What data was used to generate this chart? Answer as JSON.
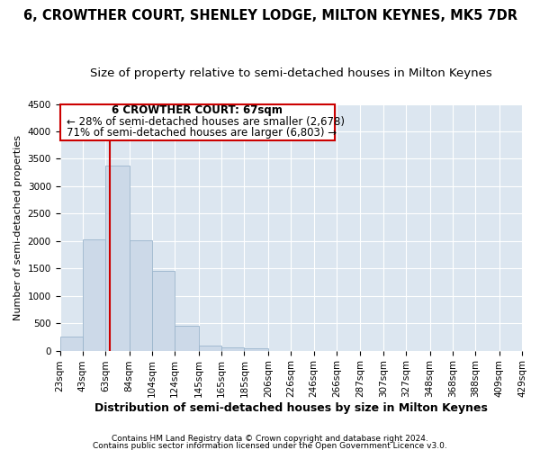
{
  "title": "6, CROWTHER COURT, SHENLEY LODGE, MILTON KEYNES, MK5 7DR",
  "subtitle": "Size of property relative to semi-detached houses in Milton Keynes",
  "xlabel": "Distribution of semi-detached houses by size in Milton Keynes",
  "ylabel": "Number of semi-detached properties",
  "annotation_title": "6 CROWTHER COURT: 67sqm",
  "annotation_line1": "← 28% of semi-detached houses are smaller (2,678)",
  "annotation_line2": "71% of semi-detached houses are larger (6,803) →",
  "footer1": "Contains HM Land Registry data © Crown copyright and database right 2024.",
  "footer2": "Contains public sector information licensed under the Open Government Licence v3.0.",
  "property_size": 67,
  "bin_edges": [
    23,
    43,
    63,
    84,
    104,
    124,
    145,
    165,
    185,
    206,
    226,
    246,
    266,
    287,
    307,
    327,
    348,
    368,
    388,
    409,
    429
  ],
  "bin_labels": [
    "23sqm",
    "43sqm",
    "63sqm",
    "84sqm",
    "104sqm",
    "124sqm",
    "145sqm",
    "165sqm",
    "185sqm",
    "206sqm",
    "226sqm",
    "246sqm",
    "266sqm",
    "287sqm",
    "307sqm",
    "327sqm",
    "348sqm",
    "368sqm",
    "388sqm",
    "409sqm",
    "429sqm"
  ],
  "counts": [
    250,
    2030,
    3380,
    2020,
    1460,
    460,
    90,
    60,
    50,
    0,
    0,
    0,
    0,
    0,
    0,
    0,
    0,
    0,
    0,
    0
  ],
  "bar_color": "#ccd9e8",
  "bar_edge_color": "#9ab5cc",
  "highlight_line_color": "#cc0000",
  "annotation_box_color": "#cc0000",
  "background_color": "#dce6f0",
  "ylim": [
    0,
    4500
  ],
  "yticks": [
    0,
    500,
    1000,
    1500,
    2000,
    2500,
    3000,
    3500,
    4000,
    4500
  ],
  "title_fontsize": 10.5,
  "subtitle_fontsize": 9.5,
  "xlabel_fontsize": 9,
  "ylabel_fontsize": 8,
  "tick_fontsize": 7.5,
  "annotation_fontsize": 8.5,
  "footer_fontsize": 6.5
}
